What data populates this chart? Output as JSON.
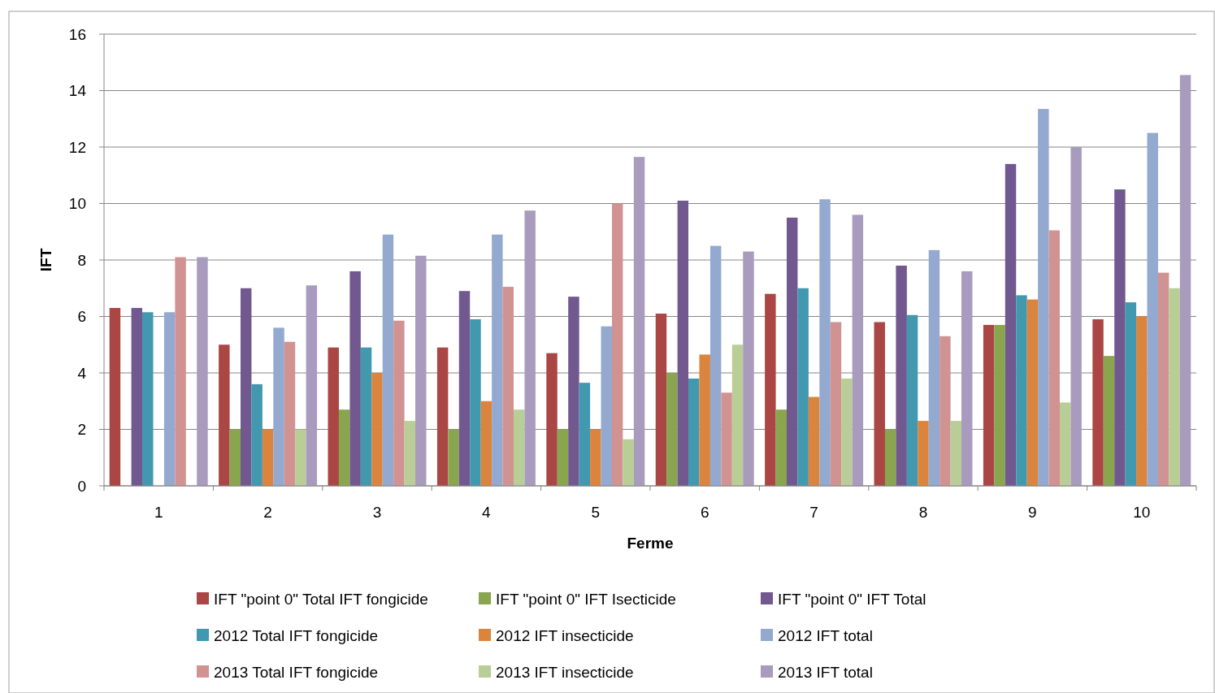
{
  "chart_data": {
    "type": "bar",
    "xlabel": "Ferme",
    "ylabel": "IFT",
    "categories": [
      "1",
      "2",
      "3",
      "4",
      "5",
      "6",
      "7",
      "8",
      "9",
      "10"
    ],
    "series": [
      {
        "name": "IFT \"point 0\" Total IFT fongicide",
        "color": "#aa4643",
        "values": [
          6.3,
          5.0,
          4.9,
          4.9,
          4.7,
          6.1,
          6.8,
          5.8,
          5.7,
          5.9
        ]
      },
      {
        "name": "IFT \"point 0\" IFT Isecticide",
        "color": "#89a54e",
        "values": [
          0,
          2.0,
          2.7,
          2.0,
          2.0,
          4.0,
          2.7,
          2.0,
          5.7,
          4.6
        ]
      },
      {
        "name": "IFT \"point 0\" IFT Total",
        "color": "#71588f",
        "values": [
          6.3,
          7.0,
          7.6,
          6.9,
          6.7,
          10.1,
          9.5,
          7.8,
          11.4,
          10.5
        ]
      },
      {
        "name": "2012 Total IFT fongicide",
        "color": "#4198af",
        "values": [
          6.15,
          3.6,
          4.9,
          5.9,
          3.65,
          3.8,
          7.0,
          6.05,
          6.75,
          6.5
        ]
      },
      {
        "name": "2012 IFT insecticide",
        "color": "#db843d",
        "values": [
          0,
          2.0,
          4.0,
          3.0,
          2.0,
          4.65,
          3.15,
          2.3,
          6.6,
          6.0
        ]
      },
      {
        "name": "2012 IFT total",
        "color": "#93a9cf",
        "values": [
          6.15,
          5.6,
          8.9,
          8.9,
          5.65,
          8.5,
          10.15,
          8.35,
          13.35,
          12.5
        ]
      },
      {
        "name": "2013 Total IFT fongicide",
        "color": "#d19392",
        "values": [
          8.1,
          5.1,
          5.85,
          7.05,
          10.0,
          3.3,
          5.8,
          5.3,
          9.05,
          7.55
        ]
      },
      {
        "name": "2013 IFT insecticide",
        "color": "#b9cd96",
        "values": [
          0,
          2.0,
          2.3,
          2.7,
          1.65,
          5.0,
          3.8,
          2.3,
          2.95,
          7.0
        ]
      },
      {
        "name": "2013 IFT total",
        "color": "#a99bbd",
        "values": [
          8.1,
          7.1,
          8.15,
          9.75,
          11.65,
          8.3,
          9.6,
          7.6,
          12.0,
          14.55
        ]
      }
    ],
    "ylim": [
      0,
      16
    ],
    "yticks": [
      0,
      2,
      4,
      6,
      8,
      10,
      12,
      14,
      16
    ],
    "grid": "y",
    "legend": "bottom"
  }
}
